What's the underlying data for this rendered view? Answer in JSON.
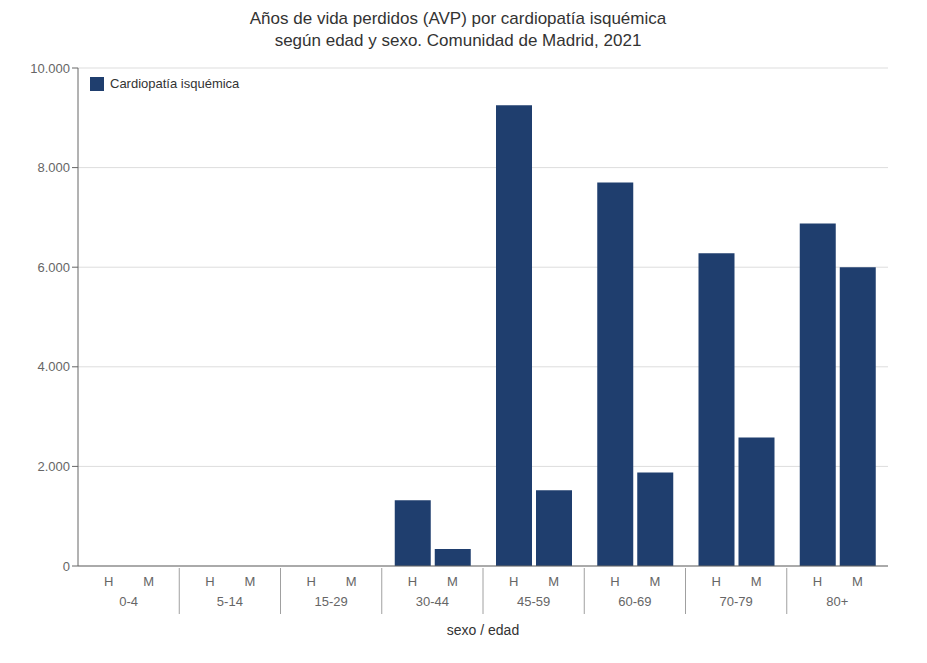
{
  "chart_data": {
    "type": "bar",
    "title": "Años de vida perdidos (AVP) por cardiopatía isquémica\nsegún edad y sexo. Comunidad de Madrid, 2021",
    "xlabel": "sexo / edad",
    "categories": [
      "H",
      "M",
      "H",
      "M",
      "H",
      "M",
      "H",
      "M",
      "H",
      "M",
      "H",
      "M",
      "H",
      "M",
      "H",
      "M"
    ],
    "category_groups": [
      "0-4",
      "5-14",
      "15-29",
      "30-44",
      "45-59",
      "60-69",
      "70-79",
      "80+"
    ],
    "series": [
      {
        "name": "Cardiopatía isquémica",
        "color": "#1F3E6E",
        "values": [
          0,
          0,
          0,
          0,
          0,
          0,
          1320,
          340,
          9250,
          1520,
          7700,
          1880,
          6280,
          2580,
          6880,
          6000
        ]
      }
    ],
    "ylim": [
      0,
      10000
    ],
    "yticks": [
      0,
      {
        "value": 2000,
        "label": "2.000"
      },
      {
        "value": 4000,
        "label": "4.000"
      },
      {
        "value": 6000,
        "label": "6.000"
      },
      {
        "value": 8000,
        "label": "8.000"
      },
      {
        "value": 10000,
        "label": "10.000"
      }
    ],
    "grid": true,
    "legend": "upper left"
  }
}
